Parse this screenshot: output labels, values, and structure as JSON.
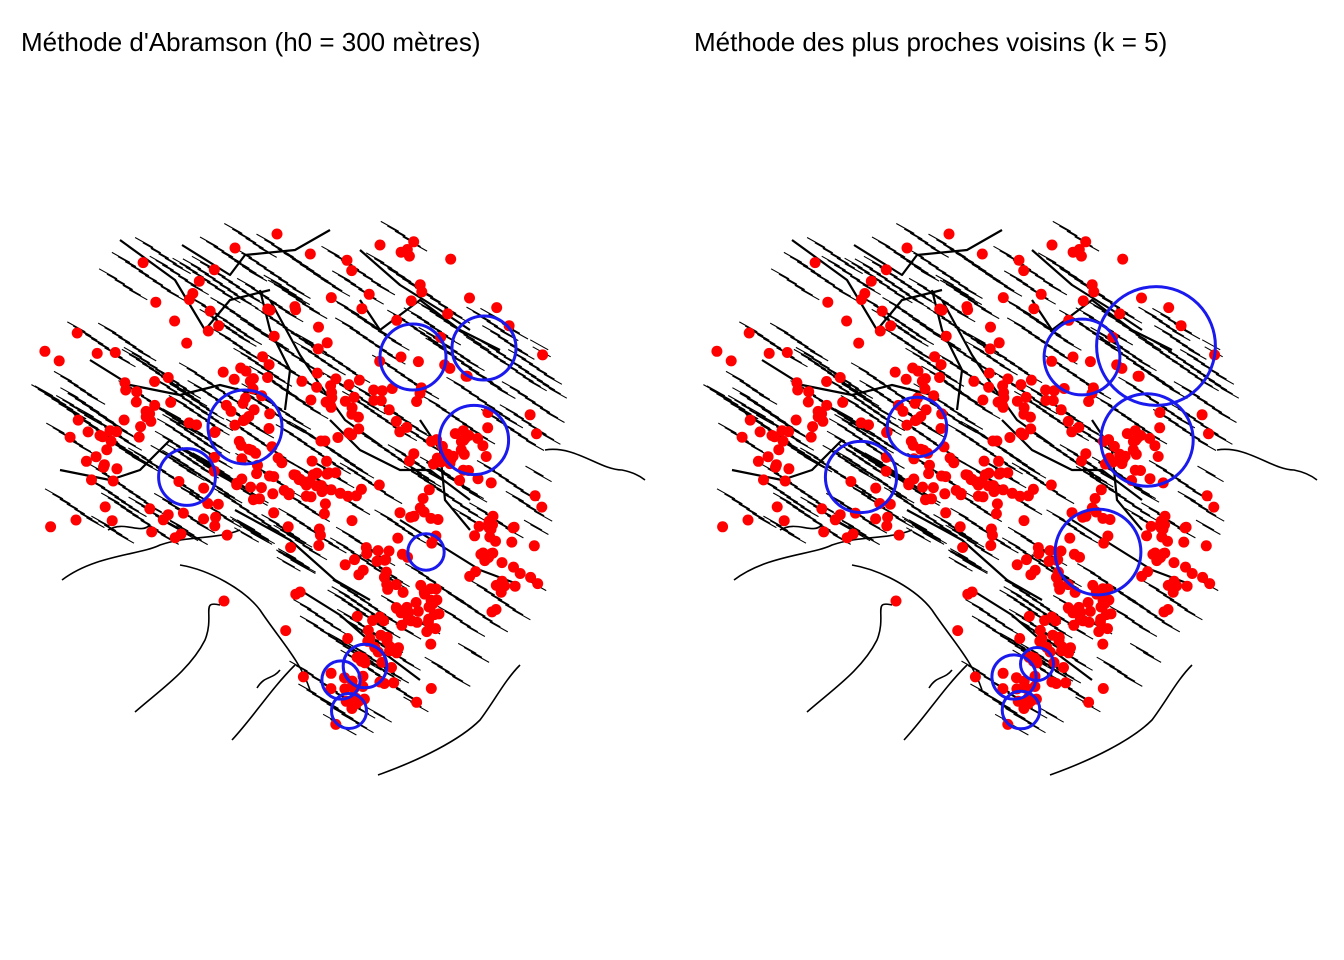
{
  "panels": [
    {
      "title": "Méthode d'Abramson (h0 = 300 mètres)",
      "kernels": [
        [
          413,
          357,
          1.0
        ],
        [
          484,
          348,
          0.97
        ],
        [
          474,
          440,
          1.05
        ],
        [
          245,
          427,
          1.12
        ],
        [
          187,
          477,
          0.86
        ],
        [
          426,
          552,
          0.55
        ],
        [
          365,
          666,
          0.66
        ],
        [
          341,
          680,
          0.58
        ],
        [
          349,
          711,
          0.53
        ]
      ]
    },
    {
      "title": "Méthode des plus proches voisins (k = 5)",
      "kernels": [
        [
          410,
          357,
          1.15
        ],
        [
          484,
          346,
          1.8
        ],
        [
          475,
          440,
          1.4
        ],
        [
          245,
          427,
          0.9
        ],
        [
          189,
          477,
          1.08
        ],
        [
          426,
          552,
          1.3
        ],
        [
          365,
          664,
          0.5
        ],
        [
          342,
          677,
          0.67
        ],
        [
          349,
          710,
          0.57
        ]
      ]
    }
  ],
  "colors": {
    "streets": "#000000",
    "events": "#ff0000",
    "kernels": "#1a1aee"
  }
}
